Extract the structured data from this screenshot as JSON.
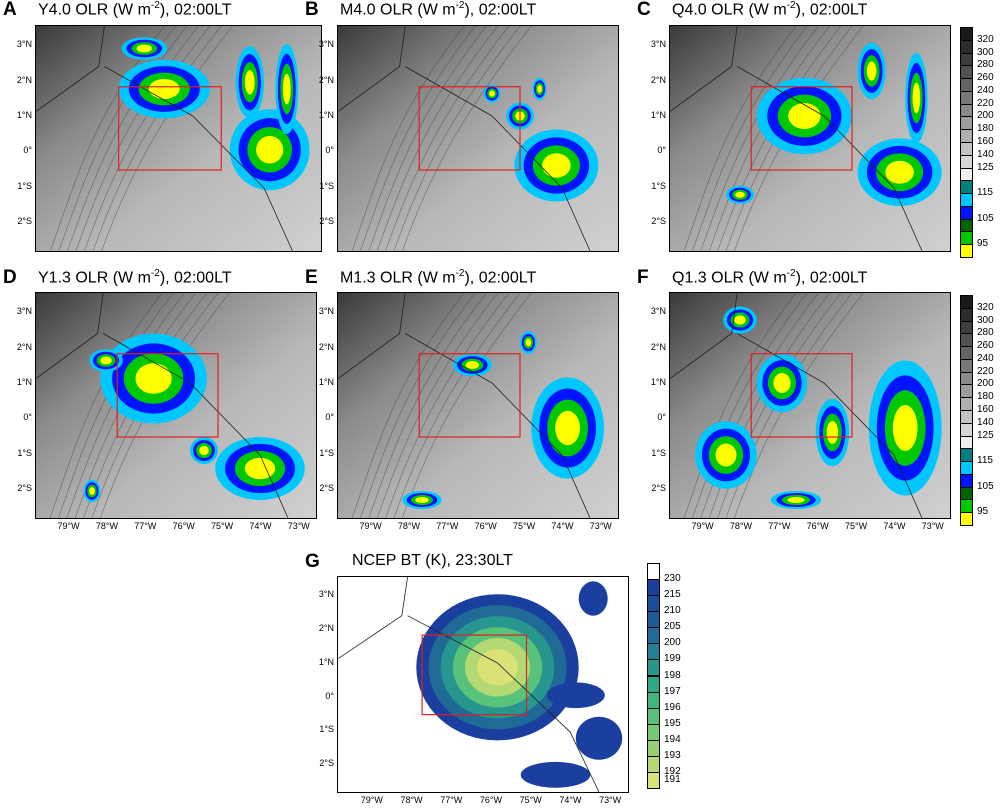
{
  "panels": [
    {
      "letter": "A",
      "title_pre": "Y4.0 OLR (W m",
      "title_sup": "-2",
      "title_post": "), 02:00LT"
    },
    {
      "letter": "B",
      "title_pre": "M4.0 OLR (W m",
      "title_sup": "-2",
      "title_post": "), 02:00LT"
    },
    {
      "letter": "C",
      "title_pre": "Q4.0 OLR (W m",
      "title_sup": "-2",
      "title_post": "), 02:00LT"
    },
    {
      "letter": "D",
      "title_pre": "Y1.3 OLR (W m",
      "title_sup": "-2",
      "title_post": "), 02:00LT"
    },
    {
      "letter": "E",
      "title_pre": "M1.3 OLR (W m",
      "title_sup": "-2",
      "title_post": "), 02:00LT"
    },
    {
      "letter": "F",
      "title_pre": "Q1.3 OLR (W m",
      "title_sup": "-2",
      "title_post": "), 02:00LT"
    },
    {
      "letter": "G",
      "title_pre": "NCEP BT (K), 23:30LT",
      "title_sup": "",
      "title_post": ""
    }
  ],
  "lat_ticks": [
    "3°N",
    "2°N",
    "1°N",
    "0°",
    "1°S",
    "2°S"
  ],
  "lon_ticks": [
    "79°W",
    "78°W",
    "77°W",
    "76°W",
    "75°W",
    "74°W",
    "73°W"
  ],
  "olr_colorbar": {
    "labels": [
      "320",
      "300",
      "280",
      "260",
      "240",
      "220",
      "200",
      "180",
      "160",
      "140",
      "125",
      "115",
      "105",
      "95"
    ],
    "colors": [
      "#1a1a1a",
      "#2c2c2c",
      "#3e3e3e",
      "#515151",
      "#646464",
      "#777777",
      "#8a8a8a",
      "#9d9d9d",
      "#b0b0b0",
      "#c3c3c3",
      "#d6d6d6",
      "#eeeeee",
      "#007f7f",
      "#00c8ff",
      "#0014ff",
      "#006400",
      "#00c800",
      "#ffff00"
    ]
  },
  "bt_colorbar": {
    "labels": [
      "230",
      "215",
      "210",
      "205",
      "200",
      "199",
      "198",
      "197",
      "196",
      "195",
      "194",
      "193",
      "192",
      "191"
    ],
    "colors": [
      "#ffffff",
      "#1a3f9e",
      "#1c4c9c",
      "#1e5a99",
      "#1f6b96",
      "#228093",
      "#26968f",
      "#2ea988",
      "#40b67f",
      "#58c17a",
      "#74c976",
      "#93d174",
      "#b4d973",
      "#d8e277"
    ]
  }
}
